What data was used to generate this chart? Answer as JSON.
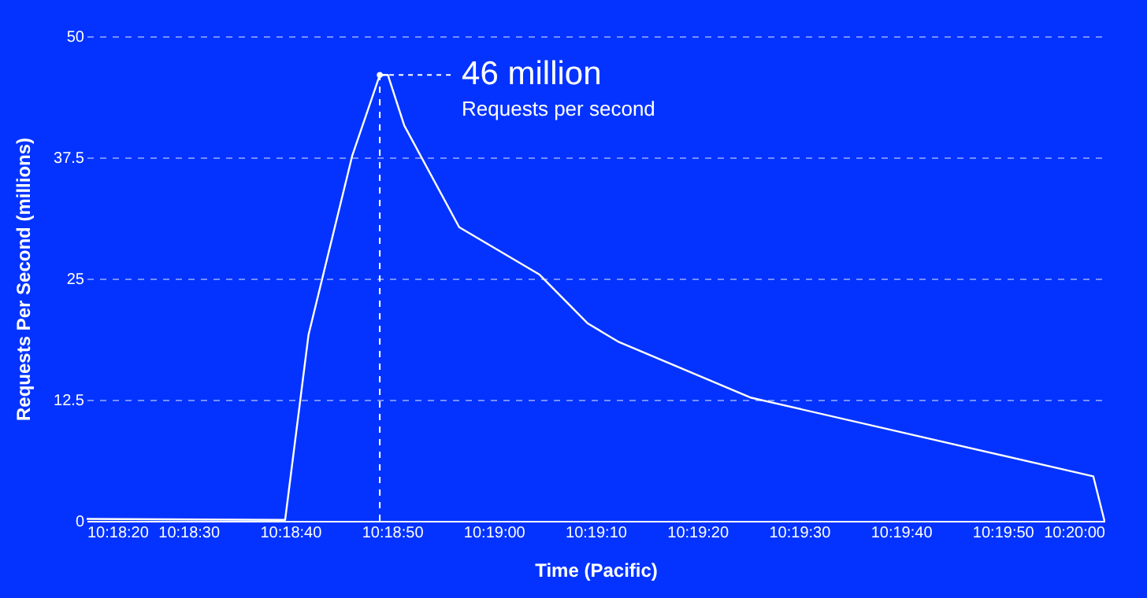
{
  "chart_data": {
    "type": "line",
    "xlabel": "Time (Pacific)",
    "ylabel": "Requests Per Second (millions)",
    "x": [
      10.3055556,
      10.3109722,
      10.3116111,
      10.3128056,
      10.3135556,
      10.3137778,
      10.3142222,
      10.3157222,
      10.3179167,
      10.3192222,
      10.3200556,
      10.3236944,
      10.3330278,
      10.3333333
    ],
    "series": [
      {
        "color": "#ffffff",
        "values": [
          0.2,
          0.1,
          19.2,
          37.7,
          46,
          46,
          40.8,
          30.3,
          25.4,
          20.4,
          18.5,
          12.7,
          4.6,
          0
        ]
      }
    ],
    "xlim": [
      10.3055556,
      10.3333333
    ],
    "xticks": [
      {
        "value": 10.3055556,
        "label": "10:18:20"
      },
      {
        "value": 10.3083333,
        "label": "10:18:30"
      },
      {
        "value": 10.3111111,
        "label": "10:18:40"
      },
      {
        "value": 10.3138889,
        "label": "10:18:50"
      },
      {
        "value": 10.3166667,
        "label": "10:19:00"
      },
      {
        "value": 10.3194444,
        "label": "10:19:10"
      },
      {
        "value": 10.3222222,
        "label": "10:19:20"
      },
      {
        "value": 10.325,
        "label": "10:19:30"
      },
      {
        "value": 10.3277778,
        "label": "10:19:40"
      },
      {
        "value": 10.3305556,
        "label": "10:19:50"
      },
      {
        "value": 10.3333333,
        "label": "10:20:00"
      }
    ],
    "ylim": [
      0,
      50
    ],
    "yticks": [
      0,
      12.5,
      25,
      37.5,
      50
    ],
    "grid": "y",
    "marker": "none",
    "line_style": "solid",
    "ref_lines": [
      {
        "axis": "x",
        "value": 10.3135556,
        "line_style": "dashed",
        "color": "#ffffff"
      }
    ],
    "annotations": [
      {
        "text": "46 million",
        "x": 10.3135556,
        "y": 46
      },
      "Requests per second"
    ]
  }
}
